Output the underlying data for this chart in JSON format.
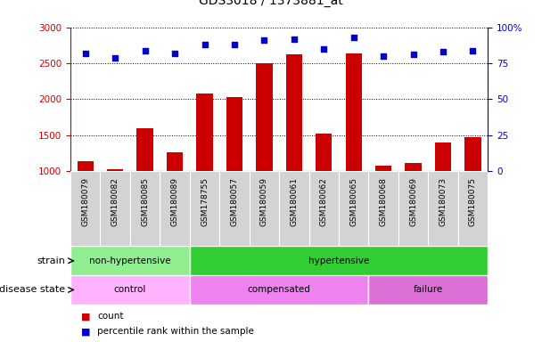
{
  "title": "GDS3018 / 1373881_at",
  "samples": [
    "GSM180079",
    "GSM180082",
    "GSM180085",
    "GSM180089",
    "GSM178755",
    "GSM180057",
    "GSM180059",
    "GSM180061",
    "GSM180062",
    "GSM180065",
    "GSM180068",
    "GSM180069",
    "GSM180073",
    "GSM180075"
  ],
  "counts": [
    1140,
    1020,
    1590,
    1260,
    2080,
    2030,
    2500,
    2620,
    1520,
    2640,
    1080,
    1110,
    1400,
    1470
  ],
  "percentile": [
    82,
    79,
    84,
    82,
    88,
    88,
    91,
    92,
    85,
    93,
    80,
    81,
    83,
    84
  ],
  "ylim_left": [
    1000,
    3000
  ],
  "ylim_right": [
    0,
    100
  ],
  "yticks_left": [
    1000,
    1500,
    2000,
    2500,
    3000
  ],
  "yticks_right": [
    0,
    25,
    50,
    75,
    100
  ],
  "bar_color": "#cc0000",
  "dot_color": "#0000cc",
  "strain_groups": [
    {
      "label": "non-hypertensive",
      "start": 0,
      "end": 4,
      "color": "#90ee90"
    },
    {
      "label": "hypertensive",
      "start": 4,
      "end": 14,
      "color": "#32cd32"
    }
  ],
  "disease_groups": [
    {
      "label": "control",
      "start": 0,
      "end": 4,
      "color": "#ffb3ff"
    },
    {
      "label": "compensated",
      "start": 4,
      "end": 10,
      "color": "#ee82ee"
    },
    {
      "label": "failure",
      "start": 10,
      "end": 14,
      "color": "#da70d6"
    }
  ],
  "legend_items": [
    {
      "label": "count",
      "color": "#cc0000"
    },
    {
      "label": "percentile rank within the sample",
      "color": "#0000cc"
    }
  ],
  "background_color": "#ffffff",
  "plot_bg_color": "#ffffff",
  "xlabel_bg_color": "#d3d3d3",
  "dotted_grid_color": "#000000",
  "label_strain": "strain",
  "label_disease": "disease state"
}
